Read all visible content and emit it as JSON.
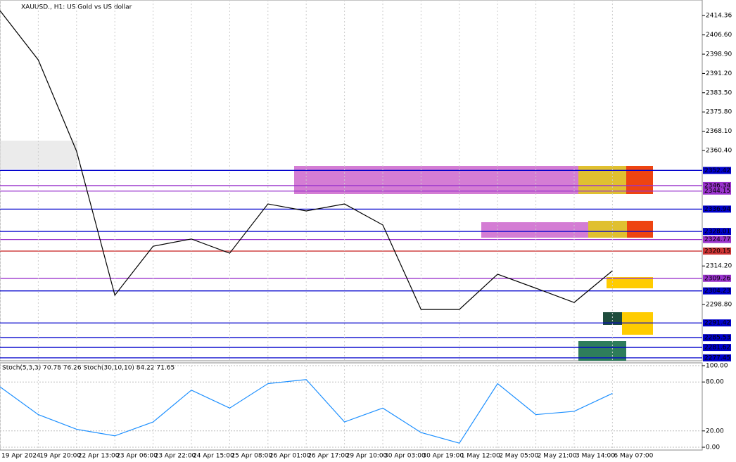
{
  "chart_data": [
    {
      "type": "line",
      "title": "XAUUSD., H1: US Gold vs US dollar",
      "categories": [
        "19 Apr 2024",
        "19 Apr 20:00",
        "22 Apr 13:00",
        "23 Apr 06:00",
        "23 Apr 22:00",
        "24 Apr 15:00",
        "25 Apr 08:00",
        "26 Apr 01:00",
        "26 Apr 17:00",
        "29 Apr 10:00",
        "30 Apr 03:00",
        "30 Apr 19:00",
        "1 May 12:00",
        "2 May 05:00",
        "2 May 21:00",
        "3 May 14:00",
        "6 May 07:00"
      ],
      "values": [
        2416.3,
        2396.6,
        2360.1,
        2302.5,
        2322.1,
        2325.0,
        2319.3,
        2339.0,
        2336.2,
        2339.0,
        2330.6,
        2296.8,
        2296.8,
        2310.9,
        2305.3,
        2299.6,
        2312.3
      ],
      "color": "#000000",
      "ylim": [
        2276.3,
        2420
      ],
      "yticks": [
        {
          "value": 2414.36,
          "label": "2414.36"
        },
        {
          "value": 2406.6,
          "label": "2406.60"
        },
        {
          "value": 2398.9,
          "label": "2398.90"
        },
        {
          "value": 2391.2,
          "label": "2391.20"
        },
        {
          "value": 2383.5,
          "label": "2383.50"
        },
        {
          "value": 2375.8,
          "label": "2375.80"
        },
        {
          "value": 2368.1,
          "label": "2368.10"
        },
        {
          "value": 2360.4,
          "label": "2360.40"
        },
        {
          "value": 2314.2,
          "label": "2314.20"
        },
        {
          "value": 2298.8,
          "label": "2298.80"
        }
      ],
      "levels": [
        {
          "value": 2352.42,
          "color": "#0000cc"
        },
        {
          "value": 2346.34,
          "color": "#9933cc"
        },
        {
          "value": 2344.15,
          "color": "#9933cc"
        },
        {
          "value": 2336.94,
          "color": "#0000cc"
        },
        {
          "value": 2328.01,
          "color": "#0000cc"
        },
        {
          "value": 2324.77,
          "color": "#9933cc"
        },
        {
          "value": 2320.15,
          "color": "#cc3333"
        },
        {
          "value": 2309.26,
          "color": "#9933cc"
        },
        {
          "value": 2304.23,
          "color": "#0000cc"
        },
        {
          "value": 2291.42,
          "color": "#0000cc"
        },
        {
          "value": 2285.53,
          "color": "#0000cc"
        },
        {
          "value": 2281.62,
          "color": "#0000cc"
        },
        {
          "value": 2277.45,
          "color": "#0000cc"
        }
      ]
    },
    {
      "type": "line",
      "title": "Stoch(5,3,3) 70.78 76.26 Stoch(30,10,10) 84.22 71.65",
      "values": [
        74,
        40,
        22,
        14,
        31,
        70,
        48,
        78,
        83,
        31,
        48,
        18,
        5,
        78,
        40,
        44,
        66
      ],
      "color": "#1e90ff",
      "ylim": [
        0,
        100
      ],
      "yticks": [
        {
          "value": 100,
          "label": "100.00"
        },
        {
          "value": 80,
          "label": "80.00"
        },
        {
          "value": 20,
          "label": "20.00"
        },
        {
          "value": 0,
          "label": "0.00"
        }
      ]
    }
  ]
}
